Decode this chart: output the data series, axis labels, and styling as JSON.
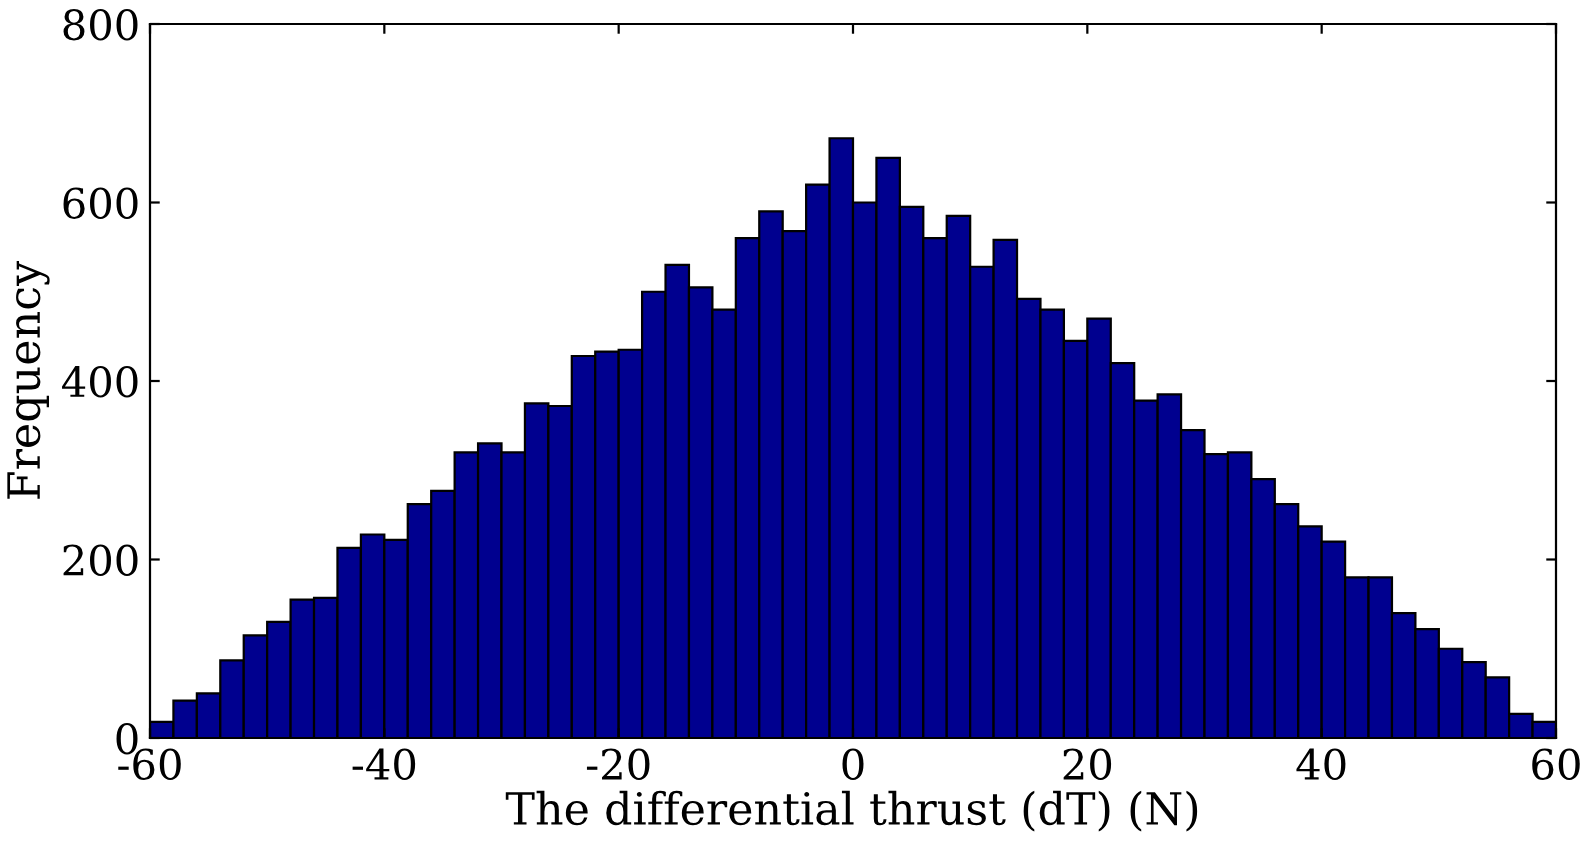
{
  "chart_data": {
    "type": "histogram",
    "xlabel": "The differential thrust (dT) (N)",
    "ylabel": "Frequency",
    "color": "#00008f",
    "bins": [
      -60,
      -58,
      -56,
      -54,
      -52,
      -50,
      -48,
      -46,
      -44,
      -42,
      -40,
      -38,
      -36,
      -34,
      -32,
      -30,
      -28,
      -26,
      -24,
      -22,
      -20,
      -18,
      -16,
      -14,
      -12,
      -10,
      -8,
      -6,
      -4,
      -2,
      0,
      2,
      4,
      6,
      8,
      10,
      12,
      14,
      16,
      18,
      20,
      22,
      24,
      26,
      28,
      30,
      32,
      34,
      36,
      38,
      40,
      42,
      44,
      46,
      48,
      50,
      52,
      54,
      56,
      58,
      60
    ],
    "values": [
      18,
      42,
      50,
      87,
      115,
      130,
      155,
      157,
      213,
      228,
      222,
      262,
      277,
      320,
      330,
      320,
      375,
      372,
      428,
      433,
      435,
      500,
      530,
      505,
      480,
      560,
      590,
      568,
      620,
      672,
      600,
      650,
      595,
      560,
      585,
      528,
      558,
      492,
      480,
      445,
      470,
      420,
      378,
      385,
      345,
      318,
      320,
      290,
      262,
      237,
      220,
      180,
      180,
      140,
      122,
      100,
      85,
      68,
      27,
      18
    ],
    "xlim": [
      -60,
      60
    ],
    "xticks": [
      -60,
      -40,
      -20,
      0,
      20,
      40,
      60
    ],
    "ylim": [
      0,
      800
    ],
    "yticks": [
      0,
      200,
      400,
      600,
      800
    ],
    "grid": false
  }
}
